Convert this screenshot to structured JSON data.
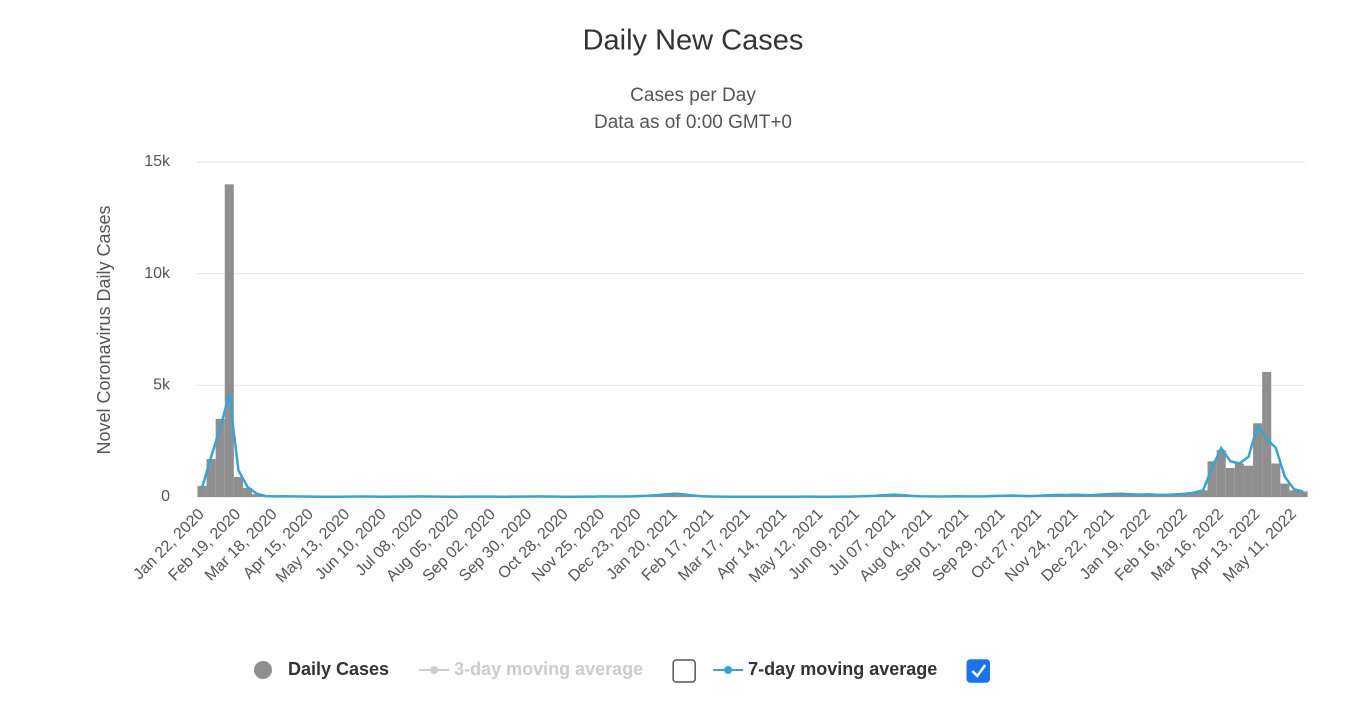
{
  "chart_data": {
    "type": "combo",
    "title": "Daily New Cases",
    "subtitle": [
      "Cases per Day",
      "Data as of 0:00 GMT+0"
    ],
    "y_label": "Novel Coronavirus Daily Cases",
    "categories": [
      "Jan 22, 2020",
      null,
      null,
      null,
      "Feb 19, 2020",
      null,
      null,
      null,
      "Mar 18, 2020",
      null,
      null,
      null,
      "Apr 15, 2020",
      null,
      null,
      null,
      "May 13, 2020",
      null,
      null,
      null,
      "Jun 10, 2020",
      null,
      null,
      null,
      "Jul 08, 2020",
      null,
      null,
      null,
      "Aug 05, 2020",
      null,
      null,
      null,
      "Sep 02, 2020",
      null,
      null,
      null,
      "Sep 30, 2020",
      null,
      null,
      null,
      "Oct 28, 2020",
      null,
      null,
      null,
      "Nov 25, 2020",
      null,
      null,
      null,
      "Dec 23, 2020",
      null,
      null,
      null,
      "Jan 20, 2021",
      null,
      null,
      null,
      "Feb 17, 2021",
      null,
      null,
      null,
      "Mar 17, 2021",
      null,
      null,
      null,
      "Apr 14, 2021",
      null,
      null,
      null,
      "May 12, 2021",
      null,
      null,
      null,
      "Jun 09, 2021",
      null,
      null,
      null,
      "Jul 07, 2021",
      null,
      null,
      null,
      "Aug 04, 2021",
      null,
      null,
      null,
      "Sep 01, 2021",
      null,
      null,
      null,
      "Sep 29, 2021",
      null,
      null,
      null,
      "Oct 27, 2021",
      null,
      null,
      null,
      "Nov 24, 2021",
      null,
      null,
      null,
      "Dec 22, 2021",
      null,
      null,
      null,
      "Jan 19, 2022",
      null,
      null,
      null,
      "Feb 16, 2022",
      null,
      null,
      null,
      "Mar 16, 2022",
      null,
      null,
      null,
      "Apr 13, 2022",
      null,
      null,
      null,
      "May 11, 2022",
      null
    ],
    "series": [
      {
        "name": "Daily Cases",
        "type": "bar",
        "color": "#8f8f8f",
        "checked": true,
        "values": [
          500,
          1700,
          3500,
          14000,
          900,
          400,
          130,
          25,
          30,
          40,
          30,
          20,
          15,
          10,
          12,
          8,
          20,
          30,
          20,
          15,
          10,
          15,
          20,
          25,
          30,
          20,
          15,
          10,
          12,
          15,
          20,
          18,
          15,
          12,
          15,
          20,
          25,
          30,
          20,
          15,
          12,
          10,
          15,
          20,
          30,
          25,
          20,
          30,
          40,
          60,
          90,
          120,
          160,
          110,
          60,
          30,
          20,
          15,
          12,
          10,
          15,
          10,
          8,
          12,
          15,
          10,
          20,
          15,
          10,
          12,
          15,
          20,
          30,
          40,
          60,
          90,
          110,
          80,
          50,
          30,
          25,
          20,
          30,
          40,
          30,
          25,
          30,
          50,
          60,
          70,
          50,
          40,
          60,
          80,
          100,
          90,
          110,
          80,
          90,
          120,
          140,
          150,
          120,
          100,
          130,
          90,
          100,
          120,
          150,
          200,
          300,
          1600,
          2100,
          1300,
          1500,
          1400,
          3300,
          5600,
          1500,
          600,
          300,
          250
        ]
      },
      {
        "name": "3-day moving average",
        "type": "line",
        "color": "#cccccc",
        "checked": false
      },
      {
        "name": "7-day moving average",
        "type": "line",
        "color": "#3ba3d0",
        "checked": true,
        "values": [
          400,
          1800,
          3100,
          4600,
          1200,
          450,
          150,
          40,
          30,
          35,
          28,
          20,
          16,
          12,
          11,
          10,
          18,
          25,
          20,
          16,
          12,
          14,
          18,
          22,
          26,
          20,
          16,
          12,
          12,
          14,
          18,
          17,
          15,
          13,
          14,
          18,
          22,
          26,
          20,
          16,
          13,
          11,
          14,
          18,
          26,
          24,
          21,
          28,
          38,
          55,
          85,
          115,
          150,
          115,
          65,
          35,
          22,
          16,
          13,
          11,
          13,
          11,
          9,
          11,
          13,
          11,
          17,
          15,
          11,
          12,
          14,
          19,
          28,
          38,
          55,
          85,
          105,
          82,
          52,
          32,
          26,
          21,
          28,
          36,
          30,
          26,
          30,
          46,
          56,
          66,
          52,
          42,
          56,
          76,
          95,
          90,
          105,
          85,
          90,
          115,
          135,
          145,
          122,
          105,
          125,
          95,
          100,
          118,
          145,
          190,
          300,
          1300,
          2200,
          1600,
          1500,
          1800,
          3200,
          2600,
          2200,
          900,
          350,
          250
        ]
      }
    ],
    "ylim": [
      0,
      15000
    ],
    "yticks": [
      0,
      {
        "value": 5000,
        "label": "5k"
      },
      {
        "value": 10000,
        "label": "10k"
      },
      {
        "value": 15000,
        "label": "15k"
      }
    ],
    "grid": true
  }
}
